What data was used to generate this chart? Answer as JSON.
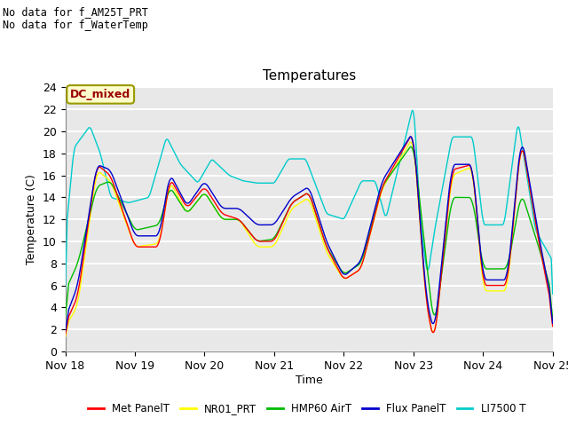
{
  "title": "Temperatures",
  "xlabel": "Time",
  "ylabel": "Temperature (C)",
  "note1": "No data for f_AM25T_PRT",
  "note2": "No data for f_WaterTemp",
  "legend_label": "DC_mixed",
  "ylim": [
    0,
    24
  ],
  "yticks": [
    0,
    2,
    4,
    6,
    8,
    10,
    12,
    14,
    16,
    18,
    20,
    22,
    24
  ],
  "xtick_labels": [
    "Nov 18",
    "Nov 19",
    "Nov 20",
    "Nov 21",
    "Nov 22",
    "Nov 23",
    "Nov 24",
    "Nov 25"
  ],
  "fig_bg_color": "#ffffff",
  "plot_bg_color": "#e8e8e8",
  "grid_color": "#ffffff",
  "series": {
    "MetPanelT": {
      "color": "#ff0000",
      "label": "Met PanelT"
    },
    "NR01_PRT": {
      "color": "#ffff00",
      "label": "NR01_PRT"
    },
    "HMP60AirT": {
      "color": "#00bb00",
      "label": "HMP60 AirT"
    },
    "FluxPanelT": {
      "color": "#0000cc",
      "label": "Flux PanelT"
    },
    "LI7500T": {
      "color": "#00cccc",
      "label": "LI7500 T"
    }
  },
  "MetPanelT_x": [
    0,
    0.18,
    0.45,
    0.65,
    1.0,
    1.35,
    1.5,
    1.75,
    2.0,
    2.25,
    2.5,
    2.75,
    3.0,
    3.25,
    3.5,
    3.75,
    4.0,
    4.25,
    4.55,
    5.0,
    5.18,
    5.3,
    5.55,
    5.85,
    6.0,
    6.35,
    6.55,
    6.8,
    7.0
  ],
  "MetPanelT_y": [
    2.5,
    5.0,
    17.0,
    16.0,
    9.5,
    9.5,
    15.8,
    13.0,
    15.0,
    12.5,
    12.0,
    10.0,
    10.0,
    13.5,
    14.5,
    9.5,
    6.5,
    7.5,
    15.0,
    20.0,
    4.5,
    0.6,
    16.5,
    17.0,
    6.0,
    6.0,
    19.5,
    10.0,
    3.5
  ],
  "NR01_PRT_x": [
    0,
    0.18,
    0.45,
    0.65,
    1.0,
    1.35,
    1.5,
    1.75,
    2.0,
    2.25,
    2.5,
    2.75,
    3.0,
    3.25,
    3.5,
    3.75,
    4.0,
    4.25,
    4.55,
    5.0,
    5.18,
    5.3,
    5.55,
    5.85,
    6.0,
    6.35,
    6.55,
    6.8,
    7.0
  ],
  "NR01_PRT_y": [
    2.2,
    4.2,
    16.5,
    15.5,
    9.5,
    9.8,
    15.5,
    12.5,
    14.5,
    12.0,
    12.0,
    9.5,
    9.5,
    13.0,
    14.0,
    9.0,
    6.5,
    7.5,
    14.8,
    19.5,
    4.5,
    0.7,
    16.0,
    16.8,
    5.5,
    5.5,
    19.5,
    10.0,
    4.5
  ],
  "HMP60AirT_x": [
    0,
    0.18,
    0.45,
    0.65,
    1.0,
    1.35,
    1.5,
    1.75,
    2.0,
    2.25,
    2.5,
    2.75,
    3.0,
    3.25,
    3.5,
    3.75,
    4.0,
    4.25,
    4.55,
    5.0,
    5.18,
    5.3,
    5.55,
    5.85,
    6.0,
    6.35,
    6.55,
    6.8,
    7.0
  ],
  "HMP60AirT_y": [
    5.5,
    8.0,
    15.0,
    15.5,
    11.0,
    11.5,
    15.0,
    12.5,
    14.5,
    12.0,
    12.0,
    10.0,
    10.2,
    13.5,
    14.5,
    9.5,
    7.0,
    8.0,
    15.0,
    19.0,
    8.5,
    2.0,
    14.0,
    14.0,
    7.5,
    7.5,
    14.5,
    9.5,
    5.0
  ],
  "FluxPanelT_x": [
    0,
    0.18,
    0.45,
    0.65,
    1.0,
    1.35,
    1.5,
    1.75,
    2.0,
    2.25,
    2.5,
    2.75,
    3.0,
    3.25,
    3.5,
    3.75,
    4.0,
    4.25,
    4.55,
    5.0,
    5.18,
    5.3,
    5.55,
    5.85,
    6.0,
    6.35,
    6.55,
    6.8,
    7.0
  ],
  "FluxPanelT_y": [
    3.0,
    6.0,
    17.0,
    16.5,
    10.5,
    10.5,
    16.2,
    13.2,
    15.5,
    13.0,
    13.0,
    11.5,
    11.5,
    14.0,
    15.0,
    10.0,
    6.8,
    8.2,
    15.5,
    20.0,
    5.0,
    1.5,
    17.0,
    17.0,
    6.5,
    6.5,
    19.8,
    10.5,
    4.0
  ],
  "LI7500T_x": [
    0,
    0.12,
    0.35,
    0.5,
    0.65,
    0.9,
    1.2,
    1.45,
    1.65,
    1.9,
    2.1,
    2.35,
    2.55,
    2.75,
    3.0,
    3.2,
    3.45,
    3.75,
    4.0,
    4.25,
    4.45,
    4.6,
    5.0,
    5.1,
    5.2,
    5.3,
    5.55,
    5.85,
    6.0,
    6.3,
    6.5,
    6.75,
    7.0
  ],
  "LI7500T_y": [
    10.5,
    18.5,
    20.5,
    18.0,
    14.0,
    13.5,
    14.0,
    19.5,
    17.0,
    15.3,
    17.5,
    16.0,
    15.5,
    15.3,
    15.3,
    17.5,
    17.5,
    12.5,
    12.0,
    15.5,
    15.5,
    12.0,
    22.5,
    11.5,
    6.8,
    11.0,
    19.5,
    19.5,
    11.5,
    11.5,
    21.0,
    11.0,
    8.2
  ]
}
